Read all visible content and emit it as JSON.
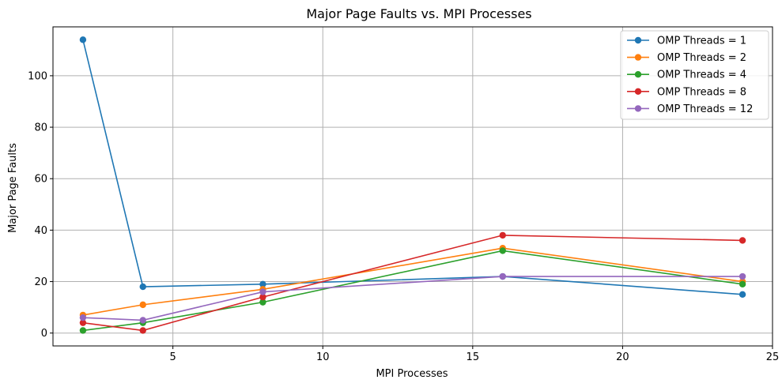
{
  "chart_data": {
    "type": "line",
    "title": "Major Page Faults vs. MPI Processes",
    "xlabel": "MPI Processes",
    "ylabel": "Major Page Faults",
    "xlim": [
      1.0,
      25.0
    ],
    "ylim": [
      -5,
      119
    ],
    "xticks": [
      5,
      10,
      15,
      20,
      25
    ],
    "yticks": [
      0,
      20,
      40,
      60,
      80,
      100
    ],
    "grid": true,
    "legend": "top-right",
    "x": [
      2,
      4,
      8,
      16,
      24
    ],
    "series": [
      {
        "name": "OMP Threads = 1",
        "color": "#1f77b4",
        "values": [
          114,
          18,
          19,
          22,
          15
        ]
      },
      {
        "name": "OMP Threads = 2",
        "color": "#ff7f0e",
        "values": [
          7,
          11,
          17,
          33,
          20
        ]
      },
      {
        "name": "OMP Threads = 4",
        "color": "#2ca02c",
        "values": [
          1,
          4,
          12,
          32,
          19
        ]
      },
      {
        "name": "OMP Threads = 8",
        "color": "#d62728",
        "values": [
          4,
          1,
          14,
          38,
          36
        ]
      },
      {
        "name": "OMP Threads = 12",
        "color": "#9467bd",
        "values": [
          6,
          5,
          16,
          22,
          22
        ]
      }
    ]
  }
}
